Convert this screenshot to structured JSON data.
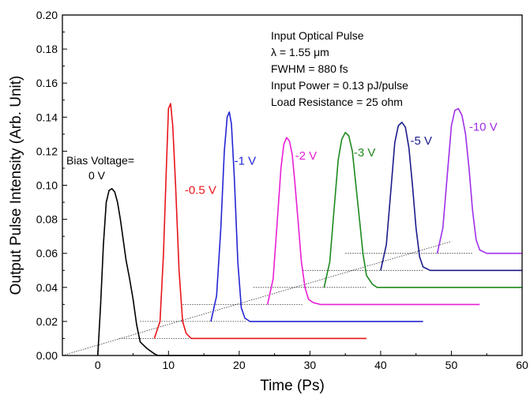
{
  "chart_data": {
    "type": "line",
    "title": "",
    "xlabel": "Time (Ps)",
    "ylabel": "Output Pulse Intensity (Arb. Unit)",
    "xlim": [
      -5,
      60
    ],
    "ylim": [
      0,
      0.2
    ],
    "xticks": [
      0,
      10,
      20,
      30,
      40,
      50,
      60
    ],
    "yticks": [
      0.0,
      0.02,
      0.04,
      0.06,
      0.08,
      0.1,
      0.12,
      0.14,
      0.16,
      0.18,
      0.2
    ],
    "grid": false,
    "annotations": {
      "header": "Input Optical Pulse",
      "lines": [
        "λ = 1.55 μm",
        "FWHM = 880 fs",
        "Input Power = 0.13 pJ/pulse",
        "Load Resistance = 25 ohm"
      ],
      "bias_label_line1": "Bias Voltage=",
      "bias_label_line2": "0 V"
    },
    "series": [
      {
        "name": "0 V",
        "color": "#000000",
        "label_x": 1.2,
        "label_y": 0.103,
        "x": [
          0.0,
          0.4,
          0.8,
          1.2,
          1.6,
          2.0,
          2.4,
          2.8,
          3.2,
          3.6,
          4.0,
          4.5,
          5.0,
          5.5,
          6.0,
          7.0,
          8.0,
          8.5,
          30.0
        ],
        "y": [
          0.0,
          0.03,
          0.065,
          0.09,
          0.097,
          0.098,
          0.096,
          0.09,
          0.08,
          0.068,
          0.056,
          0.045,
          0.033,
          0.018,
          0.008,
          0.004,
          0.001,
          0.0,
          0.0
        ]
      },
      {
        "name": "-0.5 V",
        "color": "#e8151b",
        "label_x": 12.3,
        "label_y": 0.095,
        "x": [
          8.0,
          8.8,
          9.3,
          9.7,
          10.0,
          10.3,
          10.6,
          11.0,
          11.5,
          12.0,
          12.5,
          13.2,
          14.0,
          38.0
        ],
        "y": [
          0.01,
          0.02,
          0.06,
          0.11,
          0.145,
          0.148,
          0.135,
          0.1,
          0.05,
          0.02,
          0.013,
          0.01,
          0.01,
          0.01
        ]
      },
      {
        "name": "-1 V",
        "color": "#2525d4",
        "label_x": 19.3,
        "label_y": 0.112,
        "x": [
          16.0,
          16.8,
          17.4,
          17.9,
          18.3,
          18.6,
          18.9,
          19.3,
          19.8,
          20.3,
          20.8,
          21.5,
          22.5,
          46.0
        ],
        "y": [
          0.02,
          0.035,
          0.075,
          0.12,
          0.14,
          0.143,
          0.136,
          0.105,
          0.055,
          0.028,
          0.022,
          0.02,
          0.02,
          0.02
        ]
      },
      {
        "name": "-2 V",
        "color": "#e81fd4",
        "label_x": 27.9,
        "label_y": 0.115,
        "x": [
          24.0,
          24.8,
          25.4,
          25.9,
          26.3,
          26.7,
          27.1,
          27.5,
          27.9,
          28.3,
          28.8,
          29.3,
          29.8,
          30.5,
          31.5,
          54.0
        ],
        "y": [
          0.03,
          0.045,
          0.08,
          0.11,
          0.124,
          0.128,
          0.126,
          0.118,
          0.1,
          0.08,
          0.055,
          0.04,
          0.033,
          0.031,
          0.03,
          0.03
        ]
      },
      {
        "name": "-3 V",
        "color": "#1d8a1d",
        "label_x": 36.2,
        "label_y": 0.117,
        "x": [
          32.0,
          32.8,
          33.5,
          34.0,
          34.5,
          35.0,
          35.5,
          36.0,
          36.5,
          37.0,
          37.5,
          38.0,
          38.8,
          39.5,
          60.0
        ],
        "y": [
          0.04,
          0.055,
          0.09,
          0.115,
          0.127,
          0.131,
          0.129,
          0.12,
          0.1,
          0.08,
          0.06,
          0.047,
          0.042,
          0.04,
          0.04
        ]
      },
      {
        "name": "-5 V",
        "color": "#1b1b8c",
        "label_x": 44.2,
        "label_y": 0.124,
        "x": [
          40.0,
          40.8,
          41.5,
          42.0,
          42.5,
          43.0,
          43.5,
          44.0,
          44.5,
          45.0,
          45.5,
          46.0,
          47.0,
          60.0
        ],
        "y": [
          0.05,
          0.065,
          0.1,
          0.125,
          0.135,
          0.137,
          0.134,
          0.122,
          0.1,
          0.075,
          0.058,
          0.052,
          0.05,
          0.05
        ]
      },
      {
        "name": "-10 V",
        "color": "#a02fe8",
        "label_x": 52.5,
        "label_y": 0.132,
        "x": [
          48.0,
          48.8,
          49.5,
          50.0,
          50.5,
          51.0,
          51.5,
          52.0,
          52.5,
          53.0,
          53.5,
          54.0,
          55.0,
          60.0
        ],
        "y": [
          0.06,
          0.075,
          0.11,
          0.135,
          0.144,
          0.145,
          0.141,
          0.13,
          0.11,
          0.085,
          0.068,
          0.062,
          0.06,
          0.06
        ]
      }
    ],
    "guide_lines": [
      {
        "x": [
          -5.0,
          50.0
        ],
        "y": [
          0.0,
          0.067
        ]
      },
      {
        "x": [
          -5.0,
          8.5
        ],
        "y": [
          0.0,
          0.0
        ]
      },
      {
        "x": [
          3.0,
          13.0
        ],
        "y": [
          0.01,
          0.01
        ]
      },
      {
        "x": [
          6.0,
          21.0
        ],
        "y": [
          0.02,
          0.02
        ]
      },
      {
        "x": [
          12.0,
          29.0
        ],
        "y": [
          0.03,
          0.03
        ]
      },
      {
        "x": [
          22.0,
          38.0
        ],
        "y": [
          0.04,
          0.04
        ]
      },
      {
        "x": [
          29.0,
          46.0
        ],
        "y": [
          0.05,
          0.05
        ]
      },
      {
        "x": [
          35.0,
          53.0
        ],
        "y": [
          0.06,
          0.06
        ]
      }
    ]
  }
}
